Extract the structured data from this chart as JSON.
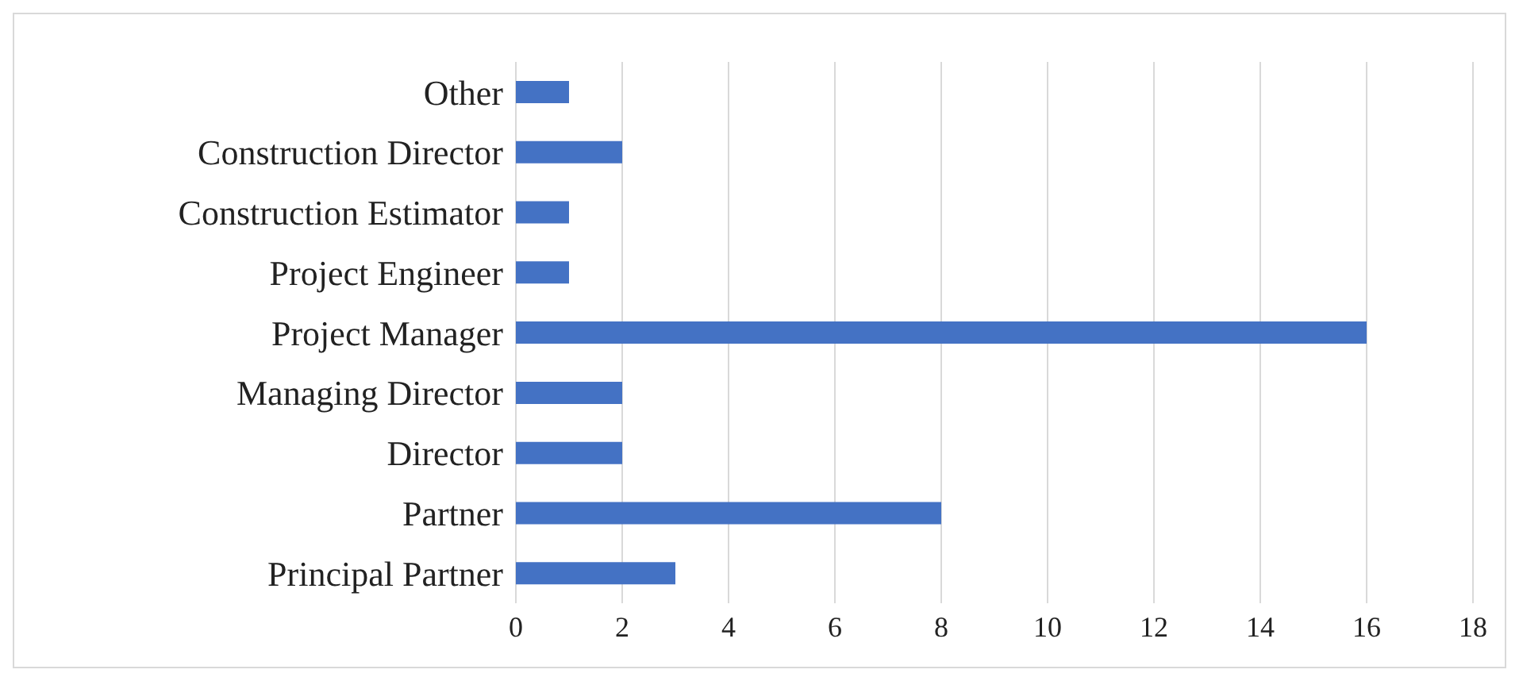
{
  "chart_data": {
    "type": "bar",
    "orientation": "horizontal",
    "categories": [
      "Other",
      "Construction Director",
      "Construction Estimator",
      "Project Engineer",
      "Project Manager",
      "Managing Director",
      "Director",
      "Partner",
      "Principal Partner"
    ],
    "values": [
      1,
      2,
      1,
      1,
      16,
      2,
      2,
      8,
      3
    ],
    "color": "#4472c4",
    "xlim": [
      0,
      18
    ],
    "xticks": [
      0,
      2,
      4,
      6,
      8,
      10,
      12,
      14,
      16,
      18
    ],
    "grid": "x"
  }
}
